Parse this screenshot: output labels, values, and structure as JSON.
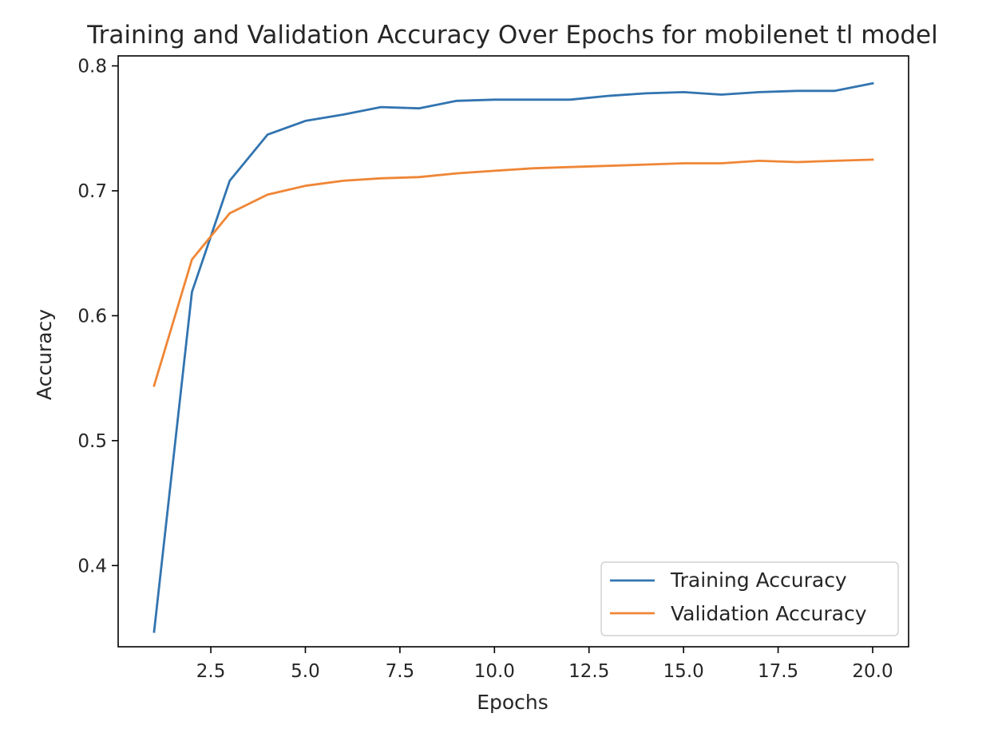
{
  "chart_data": {
    "type": "line",
    "title": "Training and Validation Accuracy Over Epochs for mobilenet tl model",
    "xlabel": "Epochs",
    "ylabel": "Accuracy",
    "xlim": [
      0.05,
      20.95
    ],
    "ylim": [
      0.335,
      0.808
    ],
    "xticks": [
      2.5,
      5.0,
      7.5,
      10.0,
      12.5,
      15.0,
      17.5,
      20.0
    ],
    "xtick_labels": [
      "2.5",
      "5.0",
      "7.5",
      "10.0",
      "12.5",
      "15.0",
      "17.5",
      "20.0"
    ],
    "yticks": [
      0.4,
      0.5,
      0.6,
      0.7,
      0.8
    ],
    "ytick_labels": [
      "0.4",
      "0.5",
      "0.6",
      "0.7",
      "0.8"
    ],
    "grid": false,
    "legend_position": "lower-right",
    "x": [
      1,
      2,
      3,
      4,
      5,
      6,
      7,
      8,
      9,
      10,
      11,
      12,
      13,
      14,
      15,
      16,
      17,
      18,
      19,
      20
    ],
    "series": [
      {
        "name": "Training Accuracy",
        "color": "#3274b0",
        "values": [
          0.347,
          0.619,
          0.708,
          0.745,
          0.756,
          0.761,
          0.767,
          0.766,
          0.772,
          0.773,
          0.773,
          0.773,
          0.776,
          0.778,
          0.779,
          0.777,
          0.779,
          0.78,
          0.78,
          0.786
        ]
      },
      {
        "name": "Validation Accuracy",
        "color": "#ef8636",
        "values": [
          0.544,
          0.645,
          0.682,
          0.697,
          0.704,
          0.708,
          0.71,
          0.711,
          0.714,
          0.716,
          0.718,
          0.719,
          0.72,
          0.721,
          0.722,
          0.722,
          0.724,
          0.723,
          0.724,
          0.725
        ]
      }
    ]
  }
}
